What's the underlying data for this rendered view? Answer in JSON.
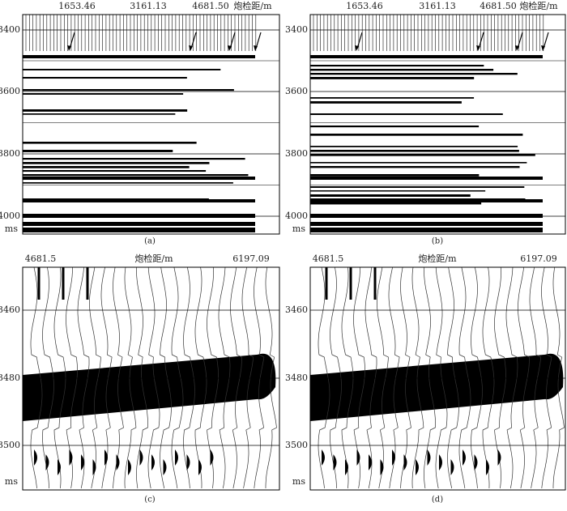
{
  "panels": [
    {
      "caption": "(a)",
      "offsets": [
        "1653.46",
        "3161.13",
        "4681.50"
      ],
      "offset_label": "炮检距/m",
      "yticks": [
        "3400",
        "3600",
        "3800",
        "4000"
      ],
      "y_unit": "ms"
    },
    {
      "caption": "(b)",
      "offsets": [
        "1653.46",
        "3161.13",
        "4681.50"
      ],
      "offset_label": "炮检距/m",
      "yticks": [
        "3400",
        "3600",
        "3800",
        "4000"
      ],
      "y_unit": "ms"
    },
    {
      "caption": "(c)",
      "offsets": [
        "4681.5",
        "6197.09"
      ],
      "offset_label": "炮检距/m",
      "yticks": [
        "3460",
        "3480",
        "3500"
      ],
      "y_unit": "ms"
    },
    {
      "caption": "(d)",
      "offsets": [
        "4681.5",
        "6197.09"
      ],
      "offset_label": "炮检距/m",
      "yticks": [
        "3460",
        "3480",
        "3500"
      ],
      "y_unit": "ms"
    }
  ]
}
